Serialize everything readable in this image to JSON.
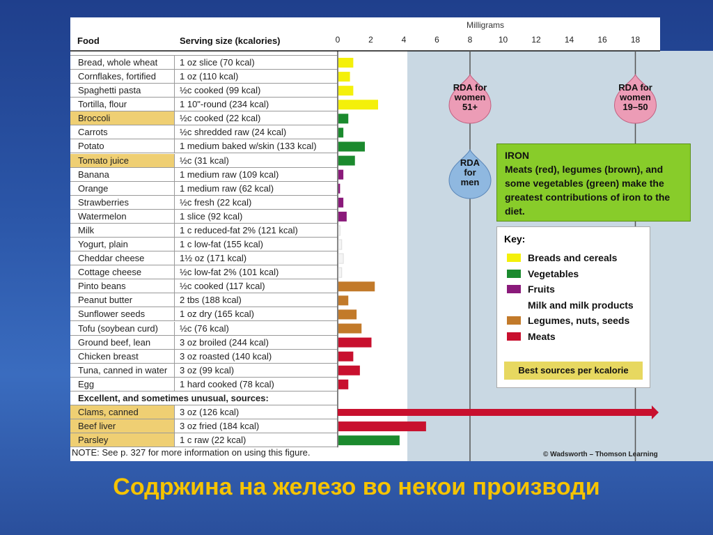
{
  "figure": {
    "header_food": "Food",
    "header_serving": "Serving size (kcalories)",
    "unit_label": "Milligrams",
    "section_label": "Excellent, and sometimes unusual, sources:",
    "note": "NOTE: See p. 327 for more information on using this figure.",
    "credit": "© Wadsworth – Thomson Learning"
  },
  "chart_data": {
    "type": "bar",
    "orientation": "horizontal",
    "xlabel": "Milligrams",
    "xlim": [
      0,
      19
    ],
    "xticks": [
      0,
      2,
      4,
      6,
      8,
      10,
      12,
      14,
      16,
      18
    ],
    "rows": [
      {
        "food": "Bread, whole wheat",
        "serving": "1 oz slice (70 kcal)",
        "value": 0.9,
        "group": "breads",
        "highlight": false
      },
      {
        "food": "Cornflakes, fortified",
        "serving": "1 oz (110 kcal)",
        "value": 0.7,
        "group": "breads",
        "highlight": false
      },
      {
        "food": "Spaghetti pasta",
        "serving": "½c cooked (99 kcal)",
        "value": 0.9,
        "group": "breads",
        "highlight": false
      },
      {
        "food": "Tortilla, flour",
        "serving": "1 10\"-round (234 kcal)",
        "value": 2.4,
        "group": "breads",
        "highlight": false
      },
      {
        "food": "Broccoli",
        "serving": "½c cooked (22 kcal)",
        "value": 0.6,
        "group": "vegetables",
        "highlight": true
      },
      {
        "food": "Carrots",
        "serving": "½c shredded raw (24 kcal)",
        "value": 0.3,
        "group": "vegetables",
        "highlight": false
      },
      {
        "food": "Potato",
        "serving": "1 medium baked w/skin (133 kcal)",
        "value": 1.6,
        "group": "vegetables",
        "highlight": false
      },
      {
        "food": "Tomato juice",
        "serving": "½c (31 kcal)",
        "value": 1.0,
        "group": "vegetables",
        "highlight": true
      },
      {
        "food": "Banana",
        "serving": "1 medium raw (109 kcal)",
        "value": 0.3,
        "group": "fruits",
        "highlight": false
      },
      {
        "food": "Orange",
        "serving": "1 medium raw (62 kcal)",
        "value": 0.1,
        "group": "fruits",
        "highlight": false
      },
      {
        "food": "Strawberries",
        "serving": "½c fresh (22 kcal)",
        "value": 0.3,
        "group": "fruits",
        "highlight": false
      },
      {
        "food": "Watermelon",
        "serving": "1 slice (92 kcal)",
        "value": 0.5,
        "group": "fruits",
        "highlight": false
      },
      {
        "food": "Milk",
        "serving": "1 c reduced-fat 2% (121 kcal)",
        "value": 0.1,
        "group": "milk",
        "highlight": false
      },
      {
        "food": "Yogurt, plain",
        "serving": "1 c low-fat (155 kcal)",
        "value": 0.2,
        "group": "milk",
        "highlight": false
      },
      {
        "food": "Cheddar cheese",
        "serving": "1½ oz (171 kcal)",
        "value": 0.3,
        "group": "milk",
        "highlight": false
      },
      {
        "food": "Cottage cheese",
        "serving": "½c low-fat 2% (101 kcal)",
        "value": 0.2,
        "group": "milk",
        "highlight": false
      },
      {
        "food": "Pinto beans",
        "serving": "½c cooked (117 kcal)",
        "value": 2.2,
        "group": "legumes",
        "highlight": false
      },
      {
        "food": "Peanut butter",
        "serving": "2 tbs (188 kcal)",
        "value": 0.6,
        "group": "legumes",
        "highlight": false
      },
      {
        "food": "Sunflower seeds",
        "serving": "1 oz dry (165 kcal)",
        "value": 1.1,
        "group": "legumes",
        "highlight": false
      },
      {
        "food": "Tofu (soybean curd)",
        "serving": "½c (76 kcal)",
        "value": 1.4,
        "group": "legumes",
        "highlight": false
      },
      {
        "food": "Ground beef, lean",
        "serving": "3 oz broiled (244 kcal)",
        "value": 2.0,
        "group": "meats",
        "highlight": false
      },
      {
        "food": "Chicken breast",
        "serving": "3 oz roasted (140 kcal)",
        "value": 0.9,
        "group": "meats",
        "highlight": false
      },
      {
        "food": "Tuna, canned in water",
        "serving": "3 oz (99 kcal)",
        "value": 1.3,
        "group": "meats",
        "highlight": false
      },
      {
        "food": "Egg",
        "serving": "1 hard cooked (78 kcal)",
        "value": 0.6,
        "group": "meats",
        "highlight": false
      },
      {
        "food": "Clams, canned",
        "serving": "3 oz (126 kcal)",
        "value": 23.8,
        "group": "meats",
        "highlight": true,
        "offscale": true
      },
      {
        "food": "Beef liver",
        "serving": "3 oz fried (184 kcal)",
        "value": 5.3,
        "group": "meats",
        "highlight": true
      },
      {
        "food": "Parsley",
        "serving": "1 c raw (22 kcal)",
        "value": 3.7,
        "group": "vegetables",
        "highlight": true
      }
    ],
    "reference_lines": [
      {
        "label_lines": [
          "RDA for",
          "women",
          "51+"
        ],
        "value": 8,
        "color": "#ec9cb6"
      },
      {
        "label_lines": [
          "RDA",
          "for",
          "men"
        ],
        "value": 8,
        "color": "#8fb8e0"
      },
      {
        "label_lines": [
          "RDA for",
          "women",
          "19–50"
        ],
        "value": 18,
        "color": "#ec9cb6"
      }
    ],
    "groups": {
      "breads": {
        "label": "Breads and cereals",
        "color": "#f4f00a"
      },
      "vegetables": {
        "label": "Vegetables",
        "color": "#1b8a2e"
      },
      "fruits": {
        "label": "Fruits",
        "color": "#8a1a7a"
      },
      "milk": {
        "label": "Milk and milk products",
        "color": "#f4f4f4"
      },
      "legumes": {
        "label": "Legumes, nuts, seeds",
        "color": "#c27a2a"
      },
      "meats": {
        "label": "Meats",
        "color": "#c8102e"
      }
    }
  },
  "info_box": {
    "title": "IRON",
    "body": "Meats (red), legumes (brown), and some vegetables (green) make the greatest contributions of iron to the diet."
  },
  "key": {
    "title": "Key:",
    "items": [
      "Breads and cereals",
      "Vegetables",
      "Fruits",
      "Milk and milk products",
      "Legumes, nuts, seeds",
      "Meats"
    ],
    "best_label": "Best sources per kcalorie"
  },
  "caption": "Содржина на железо во некои производи"
}
